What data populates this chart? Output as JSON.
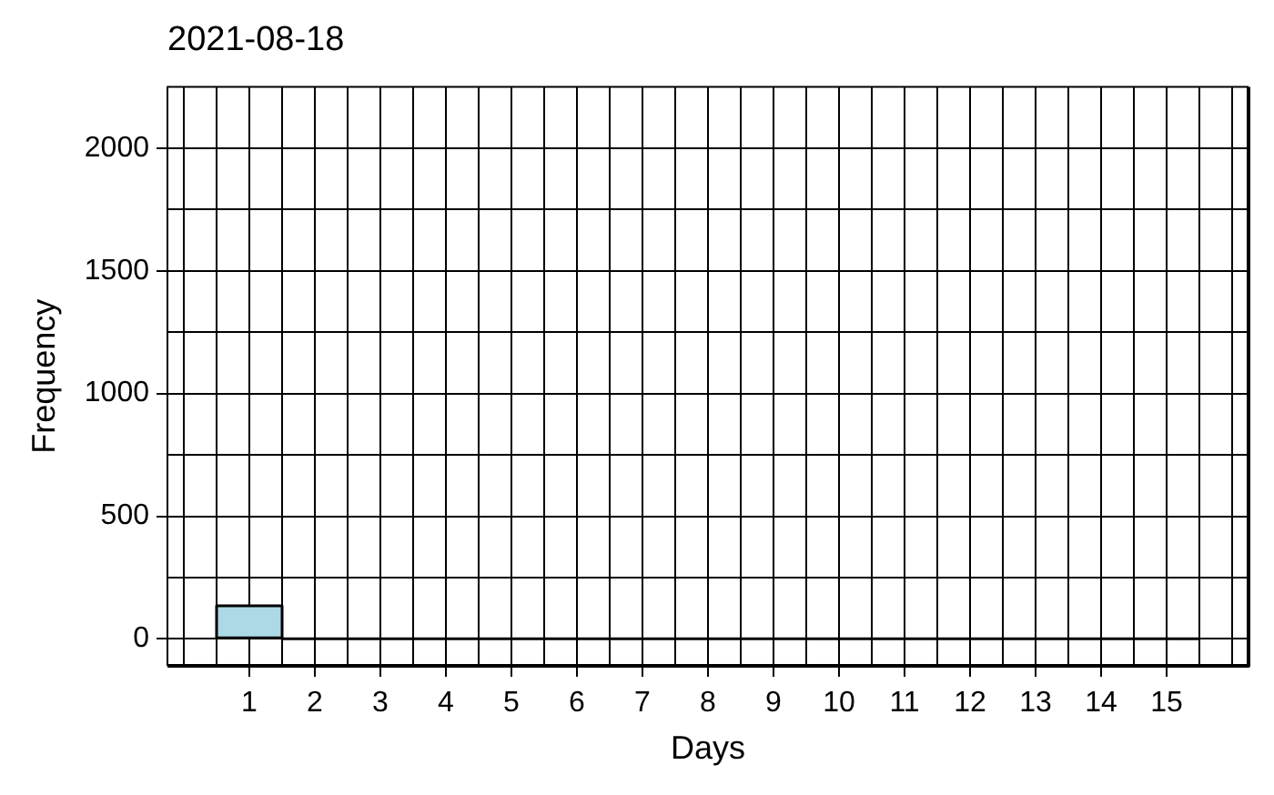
{
  "chart_data": {
    "type": "histogram",
    "title": "2021-08-18",
    "xlabel": "Days",
    "ylabel": "Frequency",
    "bins": [
      0.5,
      1.5,
      2.5,
      3.5,
      4.5,
      5.5,
      6.5,
      7.5,
      8.5,
      9.5,
      10.5,
      11.5,
      12.5,
      13.5,
      14.5,
      15.5
    ],
    "values": [
      135,
      0,
      0,
      0,
      0,
      0,
      0,
      0,
      0,
      0,
      0,
      0,
      0,
      0,
      0
    ],
    "color": "#add8e6",
    "xlim": [
      -0.25,
      16.25
    ],
    "ylim": [
      -110,
      2250
    ],
    "xticks": [
      {
        "value": 0,
        "label": null
      },
      {
        "value": 0.5,
        "label": null
      },
      1,
      {
        "value": 1.5,
        "label": null
      },
      2,
      {
        "value": 2.5,
        "label": null
      },
      3,
      {
        "value": 3.5,
        "label": null
      },
      4,
      {
        "value": 4.5,
        "label": null
      },
      5,
      {
        "value": 5.5,
        "label": null
      },
      6,
      {
        "value": 6.5,
        "label": null
      },
      7,
      {
        "value": 7.5,
        "label": null
      },
      8,
      {
        "value": 8.5,
        "label": null
      },
      9,
      {
        "value": 9.5,
        "label": null
      },
      10,
      {
        "value": 10.5,
        "label": null
      },
      11,
      {
        "value": 11.5,
        "label": null
      },
      12,
      {
        "value": 12.5,
        "label": null
      },
      13,
      {
        "value": 13.5,
        "label": null
      },
      14,
      {
        "value": 14.5,
        "label": null
      },
      15,
      {
        "value": 15.5,
        "label": null
      },
      {
        "value": 16,
        "label": null
      }
    ],
    "yticks": [
      0,
      {
        "value": 250,
        "label": null
      },
      500,
      {
        "value": 750,
        "label": null
      },
      1000,
      {
        "value": 1250,
        "label": null
      },
      1500,
      {
        "value": 1750,
        "label": null
      },
      2000
    ],
    "grid": true
  }
}
